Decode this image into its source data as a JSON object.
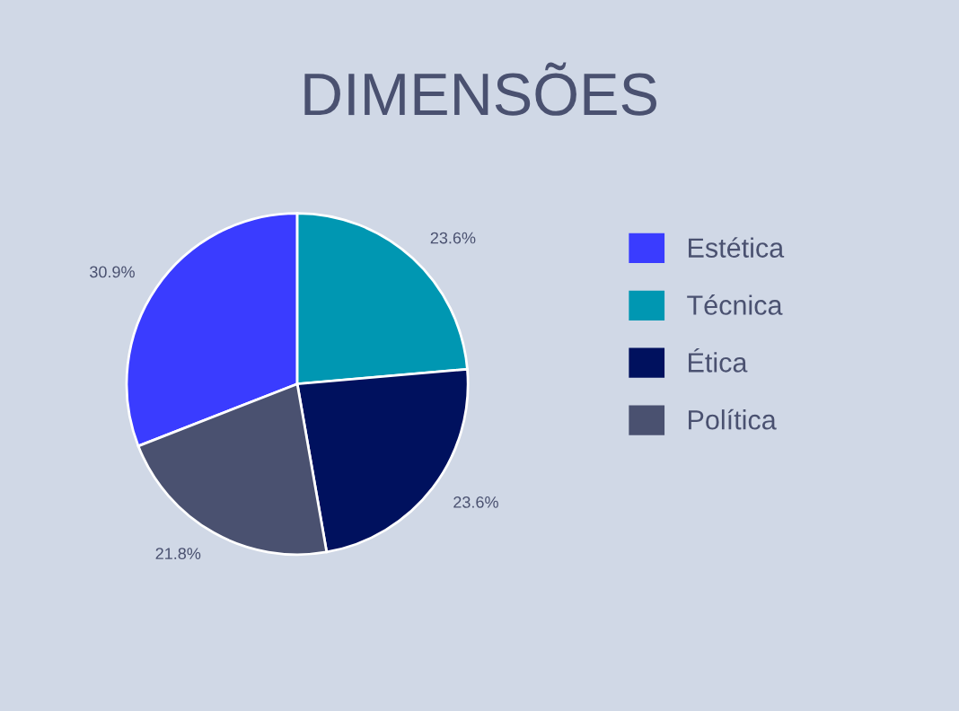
{
  "chart_data": {
    "type": "pie",
    "title": "DIMENSÕES",
    "categories": [
      "Estética",
      "Técnica",
      "Ética",
      "Política"
    ],
    "values": [
      30.9,
      23.6,
      23.6,
      21.8
    ],
    "value_labels": [
      "30.9%",
      "23.6%",
      "23.6%",
      "21.8%"
    ],
    "colors": [
      "#3a3cff",
      "#0097b2",
      "#00115e",
      "#4a5170"
    ],
    "legend": "right"
  }
}
